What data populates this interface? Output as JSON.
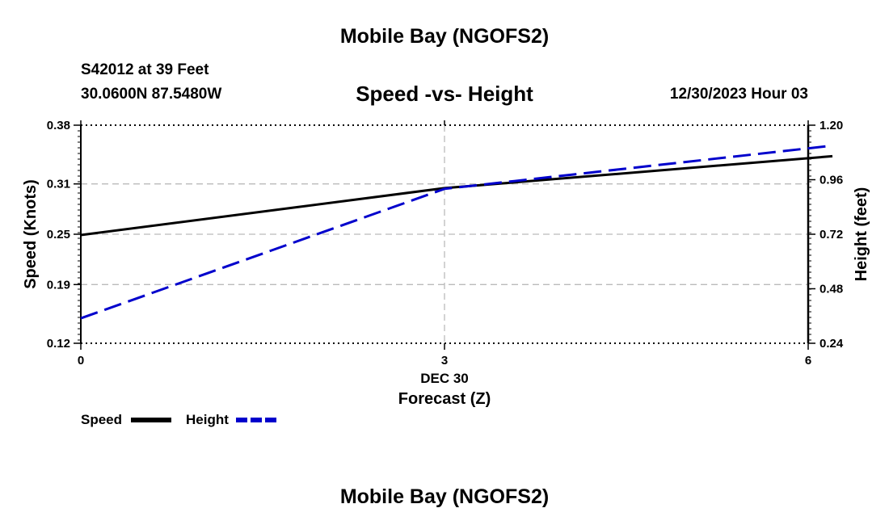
{
  "page": {
    "title": "Mobile Bay (NGOFS2)",
    "footer_title": "Mobile Bay (NGOFS2)",
    "station": "S42012 at 39 Feet",
    "coordinates": "30.0600N  87.5480W",
    "timestamp": "12/30/2023 Hour 03"
  },
  "chart_data": {
    "type": "line",
    "title": "Speed -vs- Height",
    "x": [
      0,
      3,
      6
    ],
    "x_ticks": [
      0,
      3,
      6
    ],
    "x_tick_labels": [
      "0",
      "3",
      "6"
    ],
    "x_date_label": "DEC 30",
    "xlabel": "Forecast (Z)",
    "xlim": [
      0,
      6
    ],
    "ylabel_left": "Speed (Knots)",
    "ylim_left": [
      0.12,
      0.38
    ],
    "yticks_left": [
      0.12,
      0.19,
      0.25,
      0.31,
      0.38
    ],
    "ylabel_right": "Height (feet)",
    "ylim_right": [
      0.24,
      1.2
    ],
    "yticks_right": [
      0.24,
      0.48,
      0.72,
      0.96,
      1.2
    ],
    "grid": true,
    "legend_position": "bottom-left",
    "series": [
      {
        "name": "Speed",
        "axis": "left",
        "color": "#000000",
        "style": "solid",
        "x": [
          0,
          3,
          6.2
        ],
        "values": [
          0.249,
          0.305,
          0.343
        ]
      },
      {
        "name": "Height",
        "axis": "right",
        "color": "#0000cc",
        "style": "dashed",
        "x": [
          0,
          3,
          6.2
        ],
        "values": [
          0.35,
          0.92,
          1.11
        ]
      }
    ]
  }
}
